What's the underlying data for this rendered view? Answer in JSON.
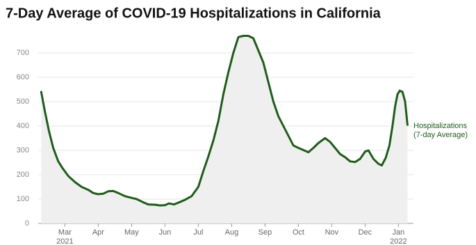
{
  "chart_data": {
    "type": "line",
    "title": "7-Day Average of COVID-19 Hospitalizations in California",
    "x": [
      2.29,
      2.4,
      2.52,
      2.65,
      2.8,
      2.94,
      3.1,
      3.3,
      3.5,
      3.7,
      3.85,
      4.0,
      4.15,
      4.3,
      4.45,
      4.6,
      4.8,
      5.0,
      5.15,
      5.33,
      5.5,
      5.7,
      5.85,
      6.0,
      6.12,
      6.27,
      6.45,
      6.6,
      6.8,
      7.0,
      7.15,
      7.3,
      7.45,
      7.6,
      7.75,
      7.9,
      8.05,
      8.2,
      8.35,
      8.5,
      8.65,
      8.8,
      8.95,
      9.1,
      9.25,
      9.4,
      9.55,
      9.7,
      9.85,
      10.0,
      10.17,
      10.3,
      10.45,
      10.6,
      10.8,
      10.95,
      11.1,
      11.25,
      11.4,
      11.55,
      11.7,
      11.85,
      12.0,
      12.1,
      12.25,
      12.4,
      12.5,
      12.62,
      12.73,
      12.82,
      12.9,
      12.97,
      13.04,
      13.12,
      13.2,
      13.27
    ],
    "series": [
      {
        "name": "Hospitalizations (7-day Average)",
        "color": "#1f5c1a",
        "values": [
          540,
          460,
          380,
          310,
          255,
          225,
          195,
          170,
          150,
          138,
          125,
          120,
          122,
          132,
          133,
          125,
          112,
          105,
          100,
          88,
          78,
          77,
          74,
          75,
          82,
          78,
          88,
          97,
          112,
          150,
          215,
          275,
          340,
          420,
          530,
          620,
          700,
          765,
          770,
          770,
          760,
          710,
          660,
          580,
          500,
          440,
          400,
          360,
          320,
          310,
          300,
          292,
          310,
          330,
          350,
          335,
          310,
          285,
          272,
          255,
          252,
          265,
          295,
          300,
          265,
          245,
          238,
          270,
          320,
          400,
          480,
          530,
          545,
          540,
          500,
          405
        ]
      }
    ],
    "area_color": "#efefef",
    "xlim": [
      2.2,
      13.45
    ],
    "ylim": [
      0,
      760
    ],
    "yticks": [
      0,
      100,
      200,
      300,
      400,
      500,
      600,
      700
    ],
    "xticks": [
      {
        "value": 3,
        "label": "Mar",
        "year": "2021"
      },
      {
        "value": 4,
        "label": "Apr"
      },
      {
        "value": 5,
        "label": "May"
      },
      {
        "value": 6,
        "label": "Jun"
      },
      {
        "value": 7,
        "label": "Jul"
      },
      {
        "value": 8,
        "label": "Aug"
      },
      {
        "value": 9,
        "label": "Sep"
      },
      {
        "value": 10,
        "label": "Oct"
      },
      {
        "value": 11,
        "label": "Nov"
      },
      {
        "value": 12,
        "label": "Dec"
      },
      {
        "value": 13,
        "label": "Jan",
        "year": "2022"
      }
    ],
    "grid": true
  }
}
